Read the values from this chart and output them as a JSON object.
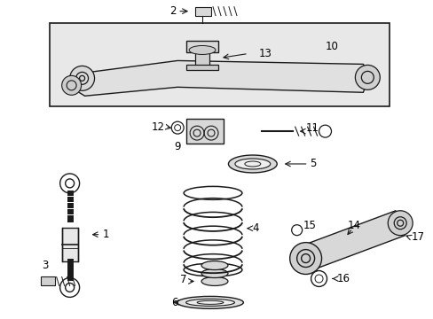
{
  "bg_color": "#ffffff",
  "diagram_bg": "#e8e8e8",
  "line_color": "#1a1a1a",
  "text_color": "#000000",
  "figsize": [
    4.89,
    3.6
  ],
  "dpi": 100
}
